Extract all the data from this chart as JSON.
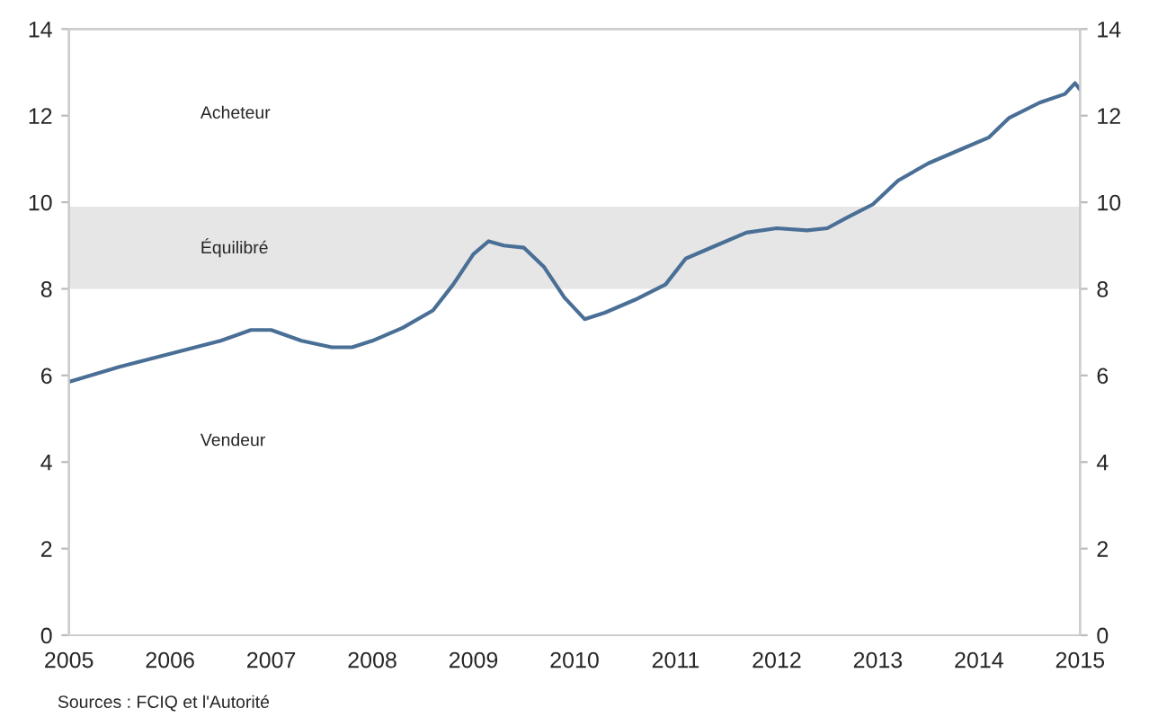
{
  "chart_data": {
    "type": "line",
    "x": [
      2005.0,
      2005.5,
      2006.0,
      2006.5,
      2006.8,
      2007.0,
      2007.3,
      2007.6,
      2007.8,
      2008.0,
      2008.3,
      2008.6,
      2008.8,
      2009.0,
      2009.15,
      2009.3,
      2009.5,
      2009.7,
      2009.9,
      2010.1,
      2010.3,
      2010.6,
      2010.9,
      2011.1,
      2011.4,
      2011.7,
      2012.0,
      2012.3,
      2012.5,
      2012.7,
      2012.95,
      2013.2,
      2013.5,
      2013.8,
      2014.1,
      2014.3,
      2014.6,
      2014.85,
      2014.95,
      2015.0
    ],
    "series": [
      {
        "color": "#4a6f96",
        "values": [
          5.85,
          6.2,
          6.5,
          6.8,
          7.05,
          7.05,
          6.8,
          6.65,
          6.65,
          6.8,
          7.1,
          7.5,
          8.1,
          8.8,
          9.1,
          9.0,
          8.95,
          8.5,
          7.8,
          7.3,
          7.45,
          7.75,
          8.1,
          8.7,
          9.0,
          9.3,
          9.4,
          9.35,
          9.4,
          9.65,
          9.95,
          10.5,
          10.9,
          11.2,
          11.5,
          11.95,
          12.3,
          12.5,
          12.75,
          12.6
        ]
      }
    ],
    "xlim": [
      2005,
      2015
    ],
    "xticks": [
      2005,
      2006,
      2007,
      2008,
      2009,
      2010,
      2011,
      2012,
      2013,
      2014,
      2015
    ],
    "ylim": [
      0,
      14
    ],
    "yticks": [
      0,
      2,
      4,
      6,
      8,
      10,
      12,
      14
    ],
    "y2lim": [
      0,
      14
    ],
    "y2ticks": [
      0,
      2,
      4,
      6,
      8,
      10,
      12,
      14
    ],
    "bands": [
      {
        "axis": "y",
        "from": 8,
        "to": 9.9,
        "color": "#e6e6e6",
        "label": "Équilibré"
      }
    ],
    "annotations": [
      "Acheteur",
      "Vendeur",
      "Sources : FCIQ et l'Autorité"
    ],
    "grid": false,
    "legend": false,
    "marker": "none",
    "line_style": "solid"
  }
}
